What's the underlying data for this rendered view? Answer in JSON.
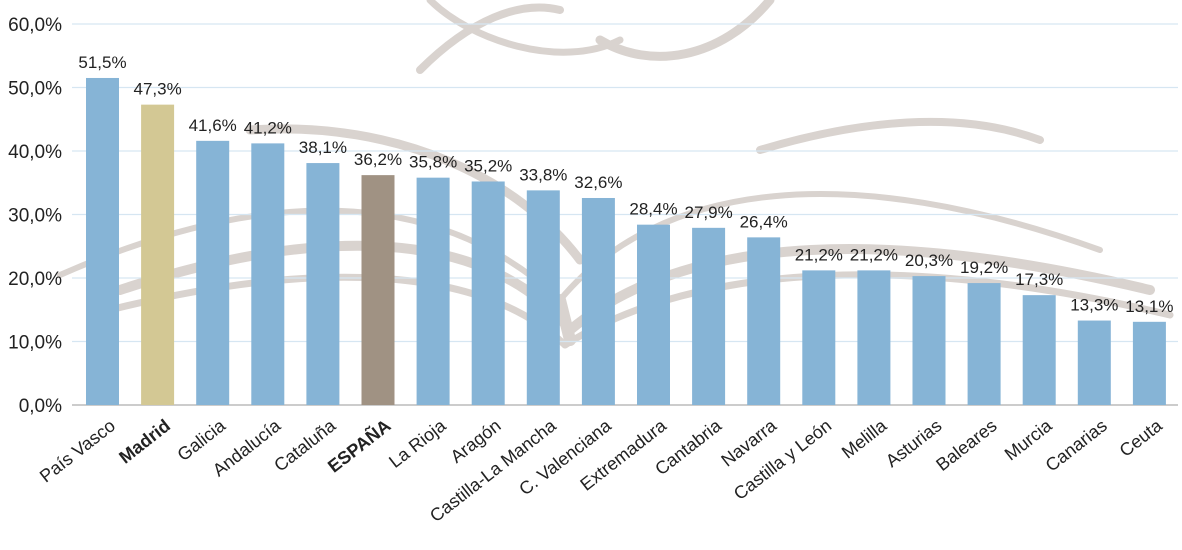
{
  "chart_data": {
    "type": "bar",
    "categories": [
      "País Vasco",
      "Madrid",
      "Galicia",
      "Andalucía",
      "Cataluña",
      "ESPAÑA",
      "La  Rioja",
      "Aragón",
      "Castilla-La Mancha",
      "C. Valenciana",
      "Extremadura",
      "Cantabria",
      "Navarra",
      "Castilla y León",
      "Melilla",
      "Asturias",
      "Baleares",
      "Murcia",
      "Canarias",
      "Ceuta"
    ],
    "values": [
      51.5,
      47.3,
      41.6,
      41.2,
      38.1,
      36.2,
      35.8,
      35.2,
      33.8,
      32.6,
      28.4,
      27.9,
      26.4,
      21.2,
      21.2,
      20.3,
      19.2,
      17.3,
      13.3,
      13.1
    ],
    "data_labels": [
      "51,5%",
      "47,3%",
      "41,6%",
      "41,2%",
      "38,1%",
      "36,2%",
      "35,8%",
      "35,2%",
      "33,8%",
      "32,6%",
      "28,4%",
      "27,9%",
      "26,4%",
      "21,2%",
      "21,2%",
      "20,3%",
      "19,2%",
      "17,3%",
      "13,3%",
      "13,1%"
    ],
    "bold_categories": [
      "Madrid",
      "ESPAÑA"
    ],
    "bar_colors": {
      "default": "#86b4d6",
      "Madrid": "#d3c894",
      "ESPAÑA": "#a09283"
    },
    "ylim": [
      0,
      60
    ],
    "yticks": [
      0,
      10,
      20,
      30,
      40,
      50,
      60
    ],
    "ytick_labels": [
      "0,0%",
      "10,0%",
      "20,0%",
      "30,0%",
      "40,0%",
      "50,0%",
      "60,0%"
    ],
    "title": "",
    "xlabel": "",
    "ylabel": "",
    "grid": true,
    "legend": "none"
  }
}
